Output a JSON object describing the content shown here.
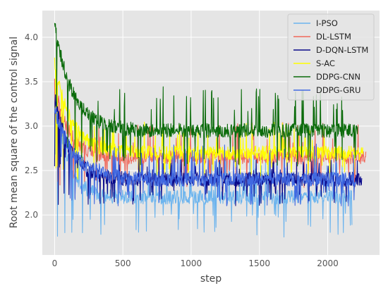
{
  "chart_data": {
    "type": "line",
    "xlabel": "step",
    "ylabel": "Root mean square of the control signal",
    "xlim": [
      -90,
      2380
    ],
    "ylim": [
      1.55,
      4.3
    ],
    "xticks": [
      0,
      500,
      1000,
      1500,
      2000
    ],
    "yticks": [
      2.0,
      2.5,
      3.0,
      3.5,
      4.0
    ],
    "xtick_labels": [
      "0",
      "500",
      "1000",
      "1500",
      "2000"
    ],
    "ytick_labels": [
      "2.0",
      "2.5",
      "3.0",
      "3.5",
      "4.0"
    ],
    "grid": true,
    "legend_position": "top-right",
    "series": [
      {
        "name": "I-PSO",
        "color": "#6cb4ee",
        "x_end": 2180,
        "start": 3.45,
        "end": 2.2,
        "spike_up": 2.75,
        "spike_down": 1.75
      },
      {
        "name": "DL-LSTM",
        "color": "#f0685a",
        "x_end": 2280,
        "start": 3.5,
        "end": 2.65,
        "spike_up": 3.05,
        "spike_down": 2.3
      },
      {
        "name": "D-DQN-LSTM",
        "color": "#0a0a8a",
        "x_end": 2250,
        "start": 3.35,
        "end": 2.4,
        "spike_up": 2.65,
        "spike_down": 2.1
      },
      {
        "name": "S-AC",
        "color": "#ffff00",
        "x_end": 2260,
        "start": 3.7,
        "end": 2.7,
        "spike_up": 3.05,
        "spike_down": 2.4
      },
      {
        "name": "DDPG-CNN",
        "color": "#0b6b0b",
        "x_end": 2220,
        "start": 4.15,
        "end": 2.95,
        "spike_up": 3.45,
        "spike_down": 2.55
      },
      {
        "name": "DDPG-GRU",
        "color": "#4169e1",
        "x_end": 2210,
        "start": 3.2,
        "end": 2.4,
        "spike_up": 2.8,
        "spike_down": 2.1
      }
    ]
  }
}
